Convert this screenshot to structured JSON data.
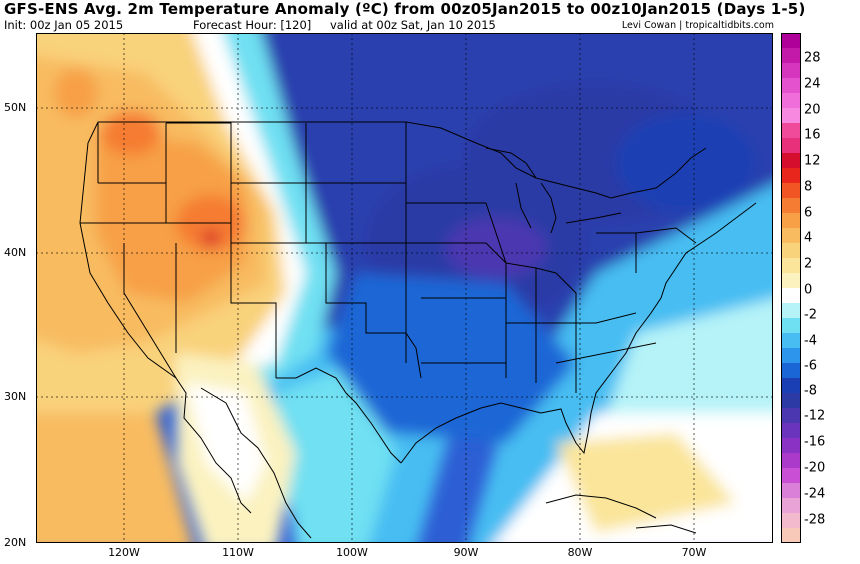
{
  "header": {
    "title": "GFS-ENS Avg. 2m Temperature Anomaly (ºC) from 00z05Jan2015 to 00z10Jan2015 (Days 1-5)",
    "init": "Init: 00z Jan 05 2015",
    "forecast_hour": "Forecast Hour: [120]",
    "valid": "valid at 00z Sat, Jan 10 2015",
    "credit": "Levi Cowan | tropicaltidbits.com"
  },
  "axes": {
    "lat_labels": [
      "50N",
      "40N",
      "30N",
      "20N"
    ],
    "lon_labels": [
      "120W",
      "110W",
      "100W",
      "90W",
      "80W",
      "70W"
    ]
  },
  "colorbar": {
    "tick_labels": [
      "28",
      "24",
      "20",
      "16",
      "12",
      "8",
      "6",
      "4",
      "2",
      "0",
      "-2",
      "-4",
      "-6",
      "-8",
      "-12",
      "-16",
      "-20",
      "-24",
      "-28"
    ],
    "colors_top_to_bottom": [
      "#b0009a",
      "#c41aaa",
      "#d635bd",
      "#e552cd",
      "#f06ed9",
      "#f889e0",
      "#f04a9a",
      "#e8307a",
      "#d40e2c",
      "#e8261c",
      "#f25524",
      "#f57c33",
      "#f7a046",
      "#f8bb60",
      "#f9d27c",
      "#fae59a",
      "#fbf2c0",
      "#ffffff",
      "#b5f3f8",
      "#6fe0f2",
      "#47bdf2",
      "#2d96ec",
      "#1b66d6",
      "#1a3fb4",
      "#2c3aa6",
      "#4b38b0",
      "#6a34bc",
      "#8a32c4",
      "#ab3acb",
      "#c94fd4",
      "#db80d8",
      "#e9a3d7",
      "#f3b9cc",
      "#f8c8b8"
    ]
  },
  "colors": {
    "warm_anomaly": "#f3a05a",
    "cold_anomaly": "#2a3fae",
    "neutral": "#ffffff"
  }
}
